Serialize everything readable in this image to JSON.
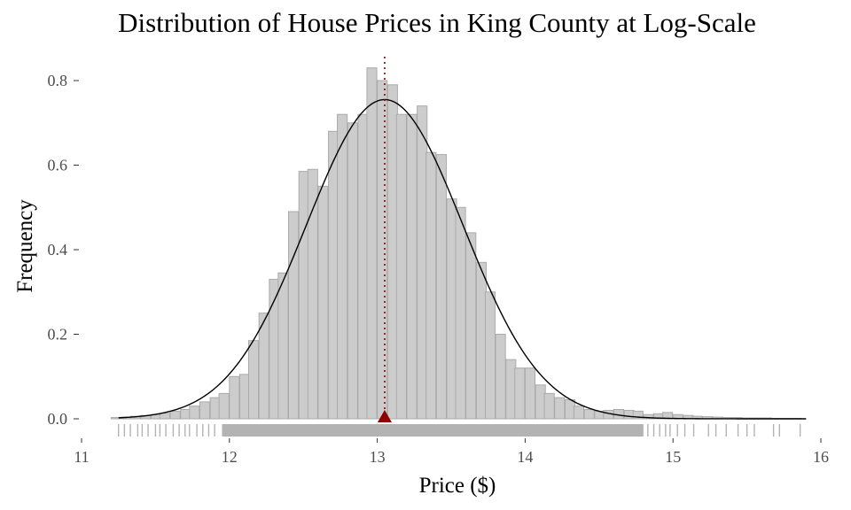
{
  "chart_data": {
    "type": "bar",
    "title": "Distribution of House Prices in King County at Log-Scale",
    "xlabel": "Price ($)",
    "ylabel": "Frequency",
    "xlim": [
      11,
      16
    ],
    "ylim": [
      0,
      0.85
    ],
    "x_ticks": [
      "11",
      "12",
      "13",
      "14",
      "15",
      "16"
    ],
    "y_ticks": [
      "0.0",
      "0.2",
      "0.4",
      "0.6",
      "0.8"
    ],
    "grid": false,
    "bin_width": 0.0667,
    "histogram": {
      "bin_starts": [
        11.2,
        11.27,
        11.33,
        11.4,
        11.47,
        11.53,
        11.6,
        11.67,
        11.73,
        11.8,
        11.87,
        11.93,
        12.0,
        12.07,
        12.13,
        12.2,
        12.27,
        12.33,
        12.4,
        12.47,
        12.53,
        12.6,
        12.67,
        12.73,
        12.8,
        12.87,
        12.93,
        13.0,
        13.07,
        13.13,
        13.2,
        13.27,
        13.33,
        13.4,
        13.47,
        13.53,
        13.6,
        13.67,
        13.73,
        13.8,
        13.87,
        13.93,
        14.0,
        14.07,
        14.13,
        14.2,
        14.27,
        14.33,
        14.4,
        14.47,
        14.53,
        14.6,
        14.67,
        14.73,
        14.8,
        14.87,
        14.93,
        15.0,
        15.07,
        15.13,
        15.2,
        15.27,
        15.33,
        15.4,
        15.47,
        15.53,
        15.6,
        15.67,
        15.73,
        15.8
      ],
      "values": [
        0.003,
        0.004,
        0.006,
        0.008,
        0.01,
        0.013,
        0.018,
        0.022,
        0.03,
        0.04,
        0.05,
        0.06,
        0.1,
        0.105,
        0.185,
        0.25,
        0.33,
        0.345,
        0.49,
        0.585,
        0.59,
        0.55,
        0.68,
        0.72,
        0.7,
        0.72,
        0.83,
        0.8,
        0.79,
        0.72,
        0.72,
        0.74,
        0.63,
        0.625,
        0.52,
        0.5,
        0.44,
        0.37,
        0.3,
        0.2,
        0.14,
        0.12,
        0.12,
        0.08,
        0.06,
        0.05,
        0.045,
        0.03,
        0.022,
        0.018,
        0.02,
        0.022,
        0.02,
        0.018,
        0.01,
        0.012,
        0.015,
        0.01,
        0.008,
        0.006,
        0.005,
        0.004,
        0.003,
        0.003,
        0.002,
        0.002,
        0.002,
        0.001,
        0.001,
        0.001
      ]
    },
    "density_curve": {
      "mean": 13.05,
      "sd": 0.53,
      "peak": 0.755
    },
    "mean_marker": {
      "x": 13.05,
      "color": "#8b0000",
      "line_style": "dotted"
    },
    "rug": {
      "dense_range": [
        11.95,
        14.8
      ],
      "sparse_points": [
        11.25,
        11.29,
        11.33,
        11.38,
        11.41,
        11.45,
        11.5,
        11.53,
        11.57,
        11.62,
        11.66,
        11.7,
        11.73,
        11.78,
        11.82,
        11.86,
        11.9,
        14.83,
        14.87,
        14.91,
        14.95,
        14.98,
        15.03,
        15.08,
        15.14,
        15.24,
        15.29,
        15.36,
        15.44,
        15.5,
        15.55,
        15.68,
        15.72,
        15.86
      ]
    },
    "colors": {
      "bar_fill": "#cccccc",
      "bar_stroke": "#aaaaaa",
      "curve": "#000000",
      "rug": "#b3b3b3",
      "axis": "#333333",
      "tick_text": "#4d4d4d"
    }
  }
}
